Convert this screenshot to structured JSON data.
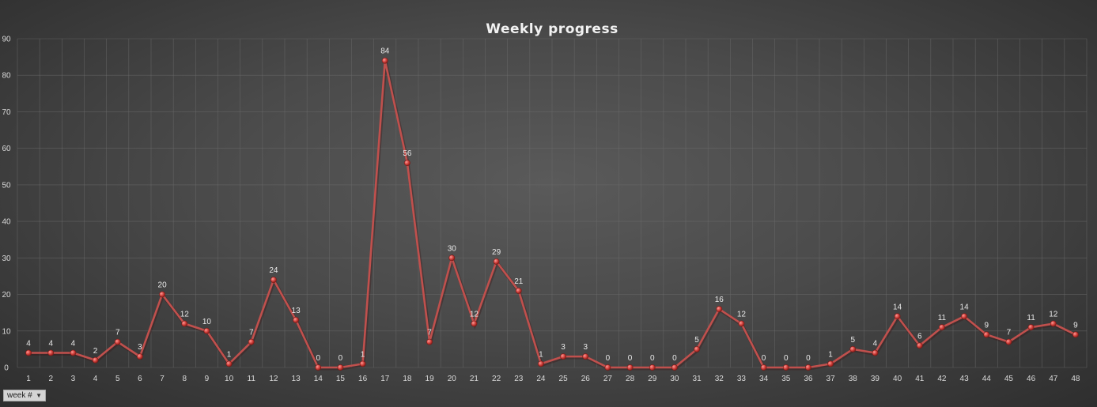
{
  "chart_data": {
    "type": "line",
    "title": "Weekly progress",
    "xlabel": "",
    "ylabel": "",
    "categories": [
      "1",
      "2",
      "3",
      "4",
      "5",
      "6",
      "7",
      "8",
      "9",
      "10",
      "11",
      "12",
      "13",
      "14",
      "15",
      "16",
      "17",
      "18",
      "19",
      "20",
      "21",
      "22",
      "23",
      "24",
      "25",
      "26",
      "27",
      "28",
      "29",
      "30",
      "31",
      "32",
      "33",
      "34",
      "35",
      "36",
      "37",
      "38",
      "39",
      "40",
      "41",
      "42",
      "43",
      "44",
      "45",
      "46",
      "47",
      "48"
    ],
    "series": [
      {
        "values": [
          4,
          4,
          4,
          2,
          7,
          3,
          20,
          12,
          10,
          1,
          7,
          24,
          13,
          0,
          0,
          1,
          84,
          56,
          7,
          30,
          12,
          29,
          21,
          1,
          3,
          3,
          0,
          0,
          0,
          0,
          5,
          16,
          12,
          0,
          0,
          0,
          1,
          5,
          4,
          14,
          6,
          11,
          14,
          9,
          7,
          11,
          12,
          9
        ]
      }
    ],
    "ylim": [
      0,
      90
    ],
    "yticks": [
      0,
      10,
      20,
      30,
      40,
      50,
      60,
      70,
      80,
      90
    ],
    "grid": true,
    "legend": "none",
    "line_color": "#c0504d"
  },
  "filter": {
    "label": "week #",
    "arrow": "▼"
  }
}
